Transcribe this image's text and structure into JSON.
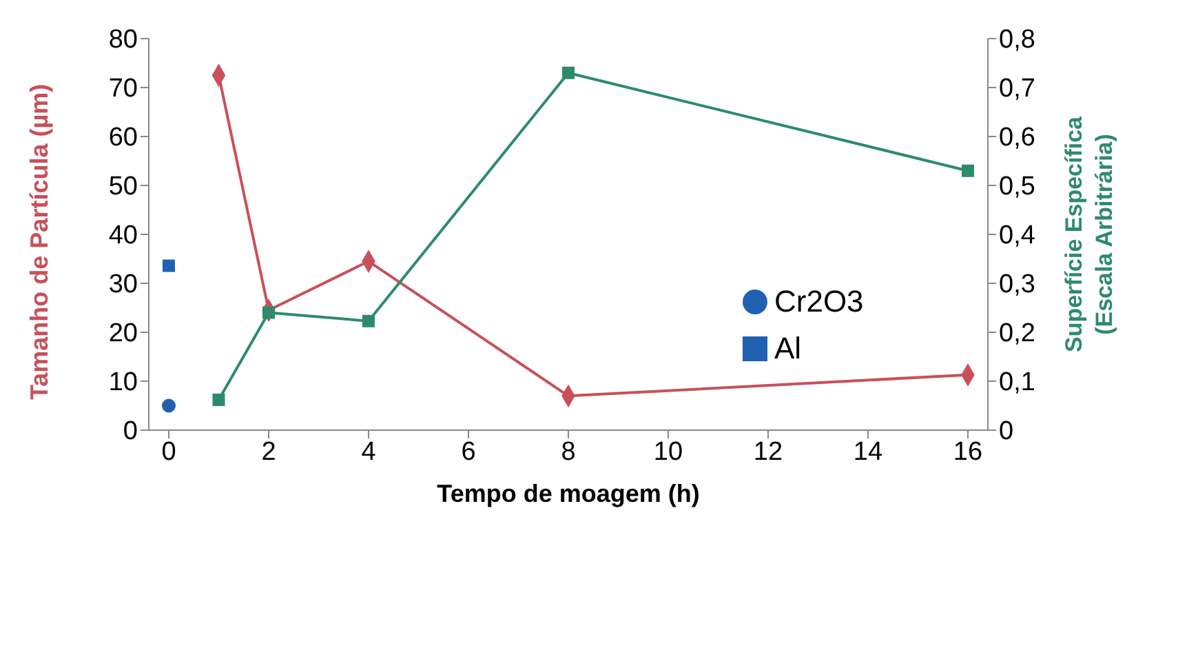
{
  "chart_data": {
    "type": "line",
    "xlabel": "Tempo de moagem (h)",
    "ylabel": "Tamanho de Partícula (µm)",
    "y2label": "Superfície Específica (Escala Arbitrária)",
    "xlim": [
      -0.4,
      16.4
    ],
    "xticks": [
      0,
      2,
      4,
      6,
      8,
      10,
      12,
      14,
      16
    ],
    "ylim": [
      0,
      80
    ],
    "yticks": [
      0,
      10,
      20,
      30,
      40,
      50,
      60,
      70,
      80
    ],
    "y2lim": [
      0,
      0.8
    ],
    "y2ticks": [
      0,
      {
        "value": 0.1,
        "label": "0,1"
      },
      {
        "value": 0.2,
        "label": "0,2"
      },
      {
        "value": 0.3,
        "label": "0,3"
      },
      {
        "value": 0.4,
        "label": "0,4"
      },
      {
        "value": 0.5,
        "label": "0,5"
      },
      {
        "value": 0.6,
        "label": "0,6"
      },
      {
        "value": 0.7,
        "label": "0,7"
      },
      {
        "value": 0.8,
        "label": "0,8"
      }
    ],
    "legend": "right",
    "series": [
      {
        "color": "#c8505a",
        "marker": "diamond",
        "x": [
          1,
          2,
          4,
          8,
          16
        ],
        "values": [
          72.5,
          24.5,
          34.5,
          7,
          11.3
        ]
      },
      {
        "axis": "y2",
        "color": "#2e8b6a",
        "marker": "square",
        "x": [
          1,
          2,
          4,
          8,
          16
        ],
        "values": [
          0.062,
          0.24,
          0.223,
          0.73,
          0.53
        ]
      },
      {
        "type": "scatter",
        "name": "Cr2O3",
        "color": "#2060b0",
        "marker": "circle",
        "x": [
          0
        ],
        "values": [
          5
        ]
      },
      {
        "type": "scatter",
        "name": "Al",
        "color": "#2060b0",
        "marker": "square",
        "x": [
          0
        ],
        "values": [
          33.6
        ]
      }
    ]
  }
}
